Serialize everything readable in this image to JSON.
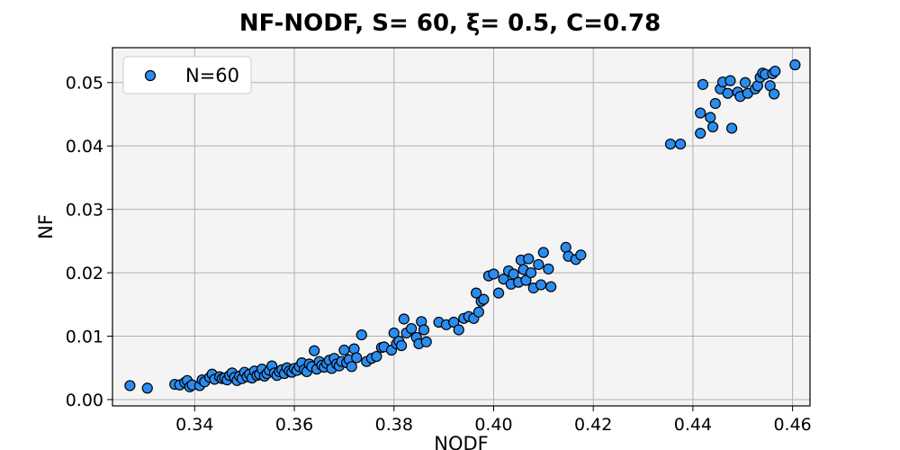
{
  "chart_data": {
    "type": "scatter",
    "title": "NF-NODF, S= 60, ξ= 0.5, C=0.78",
    "xlabel": "NODF",
    "ylabel": "NF",
    "xlim": [
      0.3235,
      0.4635
    ],
    "ylim": [
      -0.001,
      0.0555
    ],
    "x_ticks": [
      0.34,
      0.36,
      0.38,
      0.4,
      0.42,
      0.44,
      0.46
    ],
    "x_tick_labels": [
      "0.34",
      "0.36",
      "0.38",
      "0.40",
      "0.42",
      "0.44",
      "0.46"
    ],
    "y_ticks": [
      0.0,
      0.01,
      0.02,
      0.03,
      0.04,
      0.05
    ],
    "y_tick_labels": [
      "0.00",
      "0.01",
      "0.02",
      "0.03",
      "0.04",
      "0.05"
    ],
    "grid": true,
    "legend": {
      "placement": "top-left",
      "entries": [
        "N=60"
      ]
    },
    "colors": {
      "marker_fill": "#2b8cf0",
      "marker_edge": "#000000",
      "plot_bg": "#f4f4f4",
      "grid": "#b0b0b0"
    },
    "series": [
      {
        "name": "N=60",
        "points": [
          [
            0.327,
            0.0022
          ],
          [
            0.3305,
            0.0018
          ],
          [
            0.336,
            0.0024
          ],
          [
            0.337,
            0.0023
          ],
          [
            0.338,
            0.0027
          ],
          [
            0.3385,
            0.003
          ],
          [
            0.339,
            0.002
          ],
          [
            0.3395,
            0.0023
          ],
          [
            0.341,
            0.0022
          ],
          [
            0.3415,
            0.0031
          ],
          [
            0.342,
            0.0028
          ],
          [
            0.343,
            0.0035
          ],
          [
            0.3435,
            0.004
          ],
          [
            0.344,
            0.0032
          ],
          [
            0.345,
            0.0036
          ],
          [
            0.3455,
            0.0033
          ],
          [
            0.346,
            0.0034
          ],
          [
            0.3465,
            0.0031
          ],
          [
            0.347,
            0.0038
          ],
          [
            0.3475,
            0.0042
          ],
          [
            0.348,
            0.0035
          ],
          [
            0.3485,
            0.003
          ],
          [
            0.349,
            0.0037
          ],
          [
            0.3495,
            0.0033
          ],
          [
            0.35,
            0.0043
          ],
          [
            0.3505,
            0.0036
          ],
          [
            0.351,
            0.004
          ],
          [
            0.3515,
            0.0034
          ],
          [
            0.352,
            0.0045
          ],
          [
            0.3525,
            0.0038
          ],
          [
            0.353,
            0.004
          ],
          [
            0.3535,
            0.0048
          ],
          [
            0.354,
            0.0037
          ],
          [
            0.3545,
            0.0041
          ],
          [
            0.355,
            0.0046
          ],
          [
            0.3555,
            0.0053
          ],
          [
            0.356,
            0.0042
          ],
          [
            0.3565,
            0.0038
          ],
          [
            0.357,
            0.0044
          ],
          [
            0.3575,
            0.0047
          ],
          [
            0.358,
            0.0041
          ],
          [
            0.3585,
            0.005
          ],
          [
            0.359,
            0.0045
          ],
          [
            0.3595,
            0.0043
          ],
          [
            0.36,
            0.0049
          ],
          [
            0.3605,
            0.0046
          ],
          [
            0.361,
            0.0052
          ],
          [
            0.3615,
            0.0058
          ],
          [
            0.362,
            0.0047
          ],
          [
            0.3625,
            0.0044
          ],
          [
            0.363,
            0.0056
          ],
          [
            0.3635,
            0.0052
          ],
          [
            0.364,
            0.0077
          ],
          [
            0.3645,
            0.0048
          ],
          [
            0.365,
            0.006
          ],
          [
            0.3655,
            0.0054
          ],
          [
            0.366,
            0.0051
          ],
          [
            0.3665,
            0.0057
          ],
          [
            0.367,
            0.0062
          ],
          [
            0.3675,
            0.0049
          ],
          [
            0.368,
            0.0065
          ],
          [
            0.3685,
            0.0056
          ],
          [
            0.369,
            0.0053
          ],
          [
            0.3695,
            0.006
          ],
          [
            0.37,
            0.0078
          ],
          [
            0.3705,
            0.0058
          ],
          [
            0.371,
            0.0063
          ],
          [
            0.3715,
            0.0052
          ],
          [
            0.372,
            0.008
          ],
          [
            0.3725,
            0.0066
          ],
          [
            0.3735,
            0.0102
          ],
          [
            0.3745,
            0.006
          ],
          [
            0.3755,
            0.0065
          ],
          [
            0.3765,
            0.0068
          ],
          [
            0.3775,
            0.0082
          ],
          [
            0.378,
            0.0083
          ],
          [
            0.3795,
            0.0078
          ],
          [
            0.38,
            0.0105
          ],
          [
            0.3805,
            0.0088
          ],
          [
            0.381,
            0.0092
          ],
          [
            0.3815,
            0.0085
          ],
          [
            0.382,
            0.0127
          ],
          [
            0.3825,
            0.0105
          ],
          [
            0.3835,
            0.0112
          ],
          [
            0.3845,
            0.0098
          ],
          [
            0.385,
            0.0088
          ],
          [
            0.3855,
            0.0123
          ],
          [
            0.386,
            0.011
          ],
          [
            0.3865,
            0.0091
          ],
          [
            0.389,
            0.0122
          ],
          [
            0.3905,
            0.0118
          ],
          [
            0.392,
            0.0122
          ],
          [
            0.393,
            0.011
          ],
          [
            0.394,
            0.0128
          ],
          [
            0.395,
            0.0131
          ],
          [
            0.396,
            0.0128
          ],
          [
            0.3965,
            0.0168
          ],
          [
            0.397,
            0.0138
          ],
          [
            0.3975,
            0.0155
          ],
          [
            0.398,
            0.0158
          ],
          [
            0.399,
            0.0195
          ],
          [
            0.4,
            0.0198
          ],
          [
            0.401,
            0.0168
          ],
          [
            0.402,
            0.019
          ],
          [
            0.403,
            0.0203
          ],
          [
            0.4035,
            0.0182
          ],
          [
            0.404,
            0.0198
          ],
          [
            0.405,
            0.0185
          ],
          [
            0.4055,
            0.022
          ],
          [
            0.406,
            0.0205
          ],
          [
            0.4065,
            0.0188
          ],
          [
            0.407,
            0.0222
          ],
          [
            0.4075,
            0.02
          ],
          [
            0.408,
            0.0176
          ],
          [
            0.409,
            0.0213
          ],
          [
            0.4095,
            0.0181
          ],
          [
            0.41,
            0.0232
          ],
          [
            0.411,
            0.0206
          ],
          [
            0.4115,
            0.0178
          ],
          [
            0.4145,
            0.024
          ],
          [
            0.415,
            0.0226
          ],
          [
            0.4165,
            0.0221
          ],
          [
            0.4175,
            0.0228
          ],
          [
            0.4355,
            0.0403
          ],
          [
            0.4375,
            0.0403
          ],
          [
            0.4415,
            0.0452
          ],
          [
            0.4415,
            0.042
          ],
          [
            0.442,
            0.0497
          ],
          [
            0.4435,
            0.0445
          ],
          [
            0.444,
            0.043
          ],
          [
            0.4445,
            0.0467
          ],
          [
            0.4455,
            0.049
          ],
          [
            0.446,
            0.0501
          ],
          [
            0.447,
            0.0483
          ],
          [
            0.4475,
            0.0503
          ],
          [
            0.4478,
            0.0428
          ],
          [
            0.449,
            0.0485
          ],
          [
            0.4495,
            0.0478
          ],
          [
            0.4505,
            0.05
          ],
          [
            0.451,
            0.0483
          ],
          [
            0.4525,
            0.049
          ],
          [
            0.453,
            0.0495
          ],
          [
            0.4535,
            0.0508
          ],
          [
            0.454,
            0.0515
          ],
          [
            0.4545,
            0.0513
          ],
          [
            0.4555,
            0.0495
          ],
          [
            0.456,
            0.0514
          ],
          [
            0.4563,
            0.0482
          ],
          [
            0.4565,
            0.0518
          ],
          [
            0.4605,
            0.0528
          ]
        ]
      }
    ]
  }
}
